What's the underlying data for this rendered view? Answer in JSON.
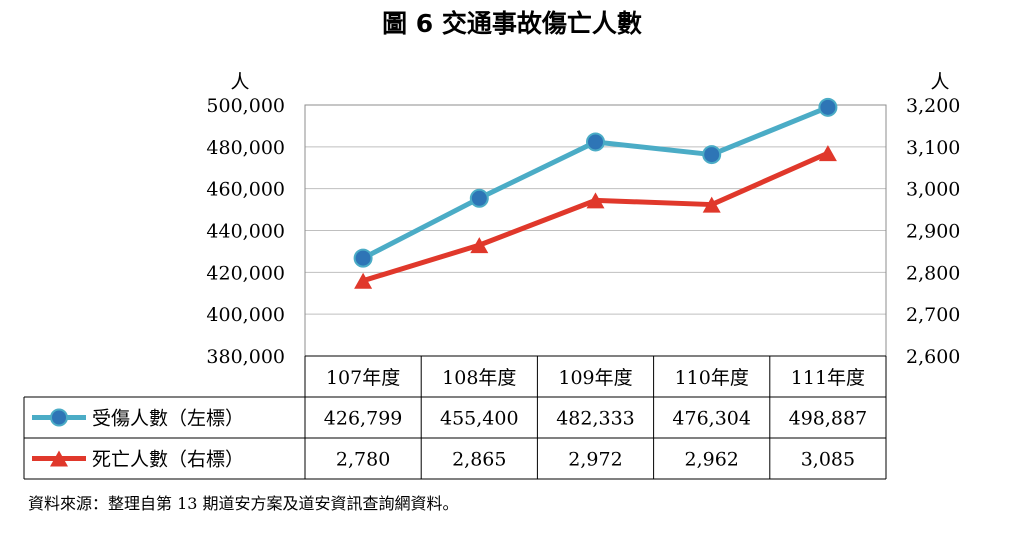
{
  "chart_data": {
    "type": "line",
    "title": "圖 6 交通事故傷亡人數",
    "categories": [
      "107年度",
      "108年度",
      "109年度",
      "110年度",
      "111年度"
    ],
    "series": [
      {
        "name": "受傷人數（左標）",
        "axis": "left",
        "marker": "circle",
        "color": "#4BACC6",
        "values": [
          426799,
          455400,
          482333,
          476304,
          498887
        ],
        "labels": [
          "426,799",
          "455,400",
          "482,333",
          "476,304",
          "498,887"
        ]
      },
      {
        "name": "死亡人數（右標）",
        "axis": "right",
        "marker": "triangle",
        "color": "#E0382B",
        "values": [
          2780,
          2865,
          2972,
          2962,
          3085
        ],
        "labels": [
          "2,780",
          "2,865",
          "2,972",
          "2,962",
          "3,085"
        ]
      }
    ],
    "y_left": {
      "unit": "人",
      "ylim": [
        380000,
        500000
      ],
      "ticks": [
        "500,000",
        "480,000",
        "460,000",
        "440,000",
        "420,000",
        "400,000",
        "380,000"
      ]
    },
    "y_right": {
      "unit": "人",
      "ylim": [
        2600,
        3200
      ],
      "ticks": [
        "3,200",
        "3,100",
        "3,000",
        "2,900",
        "2,800",
        "2,700",
        "2,600"
      ]
    },
    "grid": true,
    "legend_placement": "data-table",
    "source": "資料來源：整理自第 13 期道安方案及道安資訊查詢網資料。"
  }
}
